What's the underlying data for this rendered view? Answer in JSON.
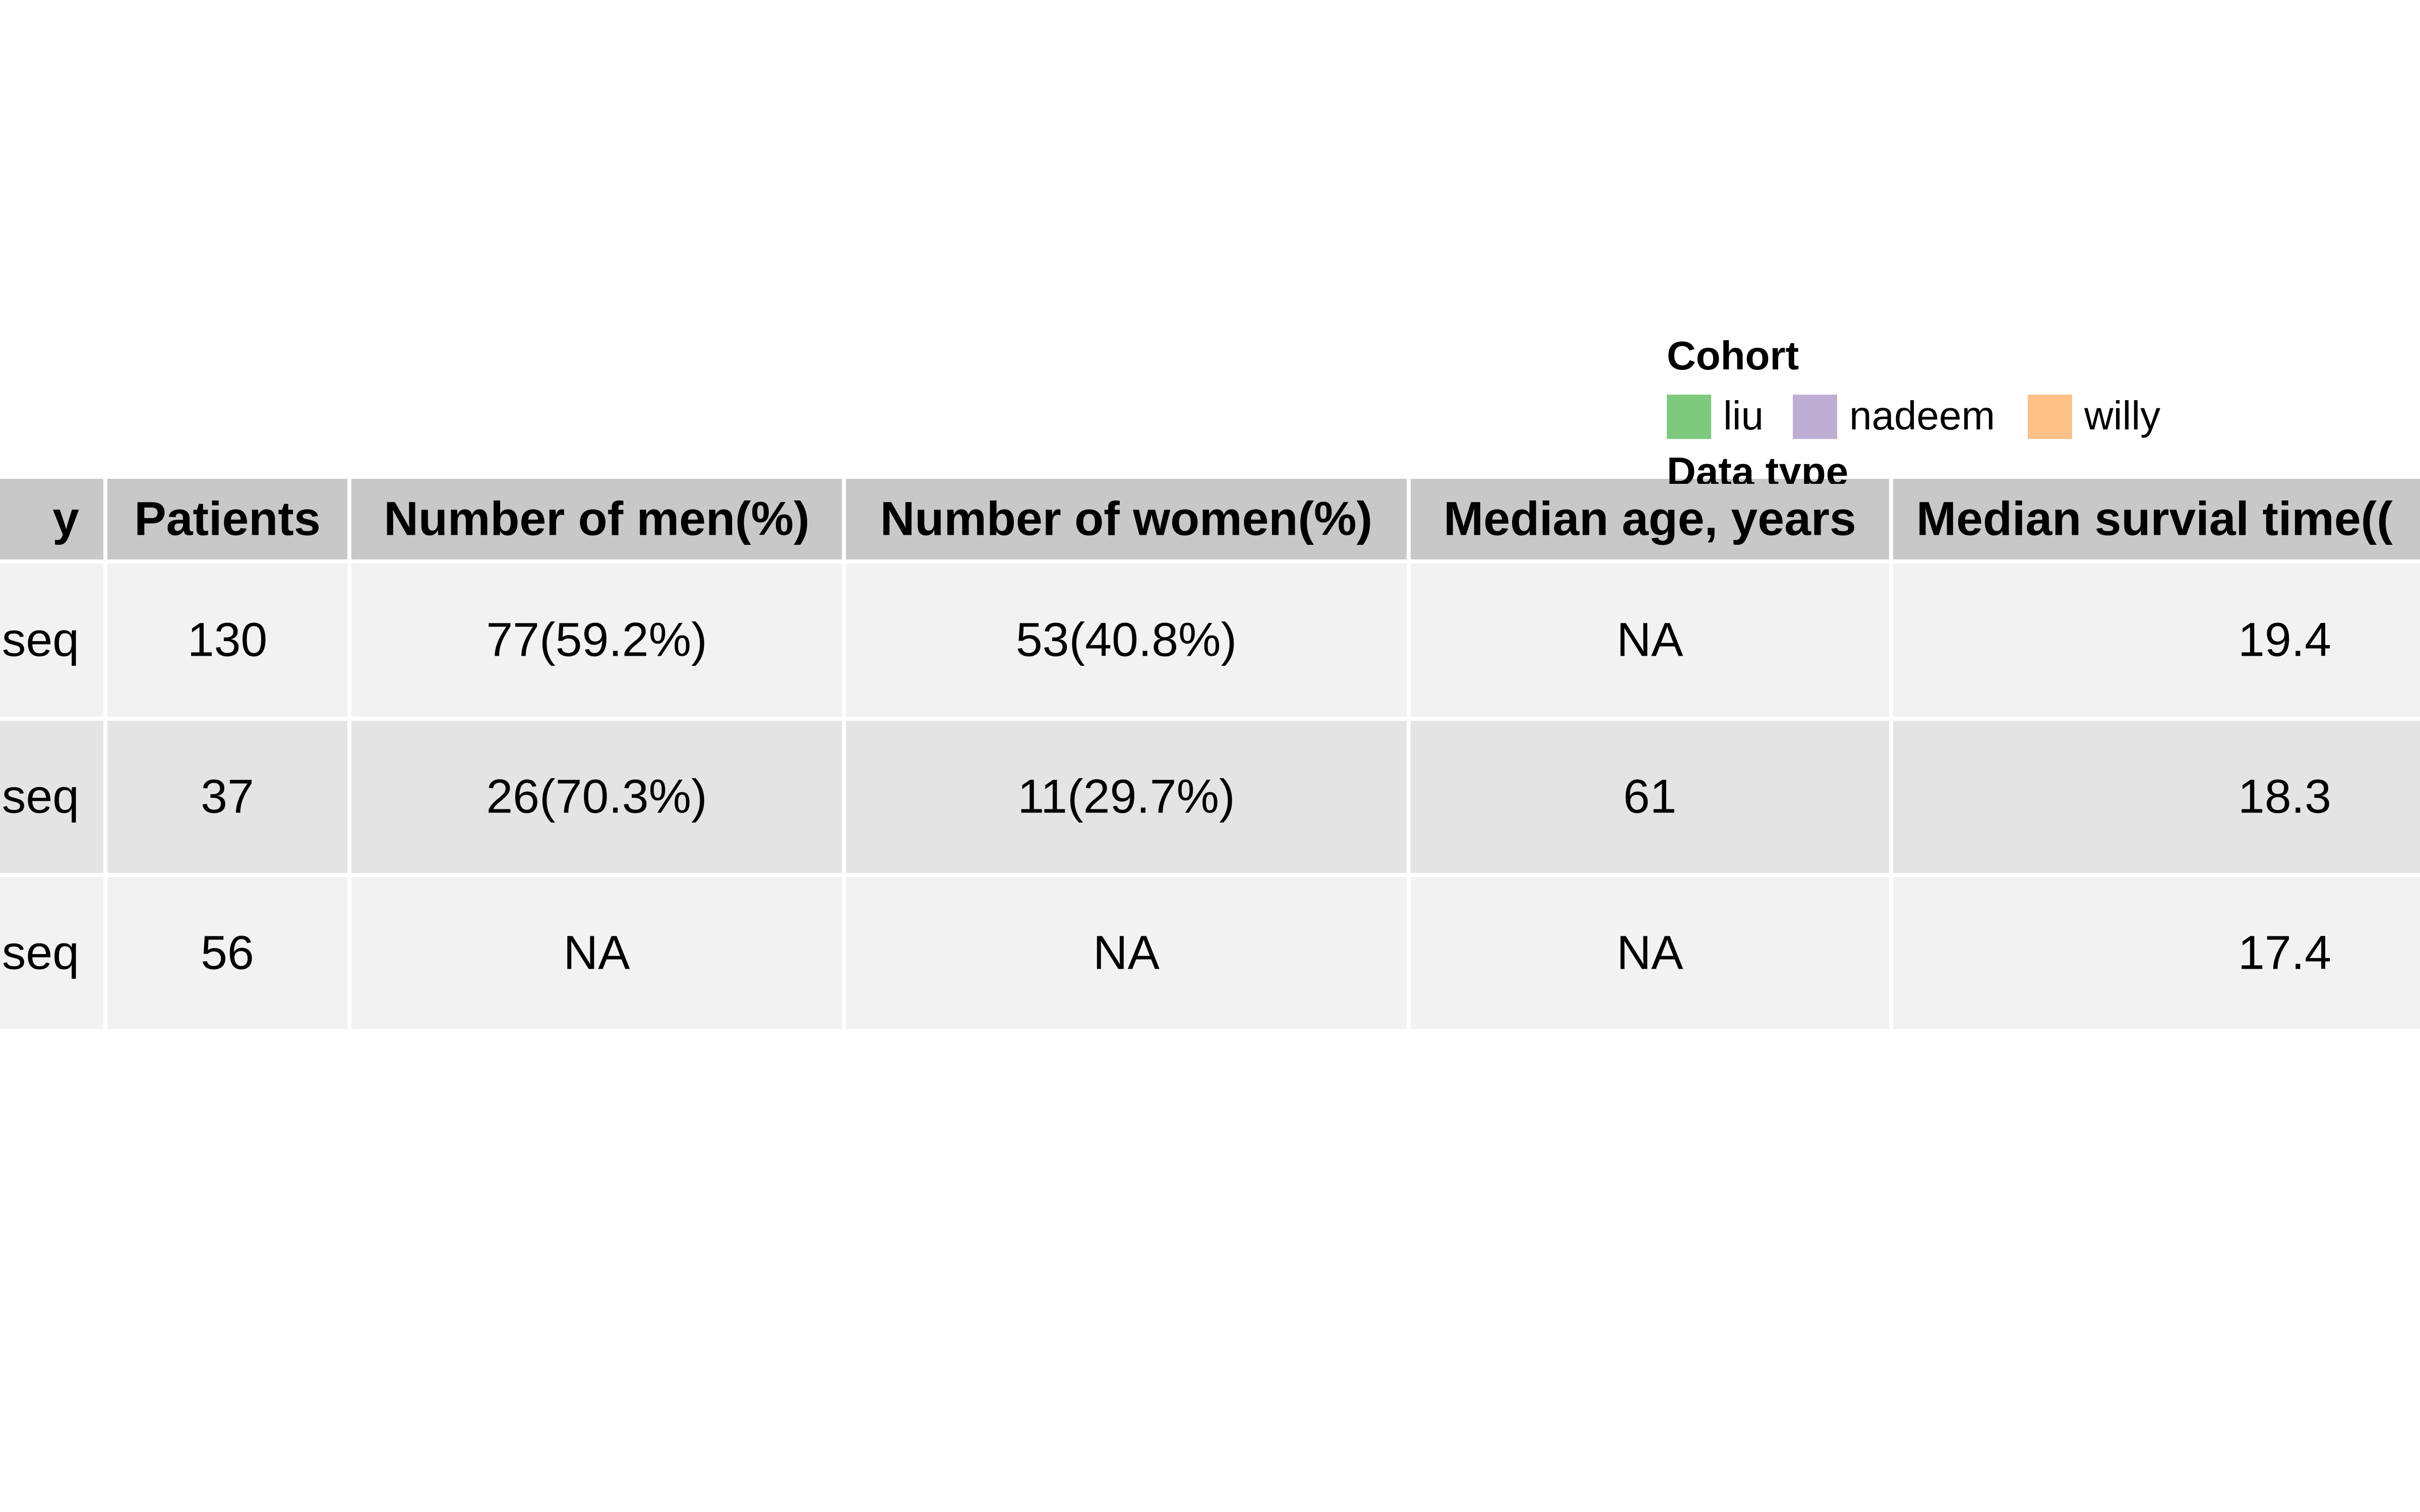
{
  "chart_data": {
    "type": "table",
    "legends": [
      {
        "title": "Cohort",
        "entries": [
          {
            "label": "liu",
            "color": "#7fc97f"
          },
          {
            "label": "nadeem",
            "color": "#beaed4"
          },
          {
            "label": "willy",
            "color": "#fdc086"
          }
        ]
      },
      {
        "title": "Data type",
        "entries": []
      }
    ],
    "columns": [
      "y",
      "Patients",
      "Number of men(%)",
      "Number of women(%)",
      "Median age, years",
      "Median survial time(("
    ],
    "rows": [
      [
        "eseq",
        "130",
        "77(59.2%)",
        "53(40.8%)",
        "NA",
        "19.4"
      ],
      [
        "eseq",
        "37",
        "26(70.3%)",
        "11(29.7%)",
        "61",
        "18.3"
      ],
      [
        "eseq",
        "56",
        "NA",
        "NA",
        "NA",
        "17.4"
      ]
    ]
  },
  "colors": {
    "header_bg": "#c8c8c8",
    "row_light": "#f2f2f2",
    "row_dark": "#e4e4e4",
    "grid": "#ffffff"
  }
}
